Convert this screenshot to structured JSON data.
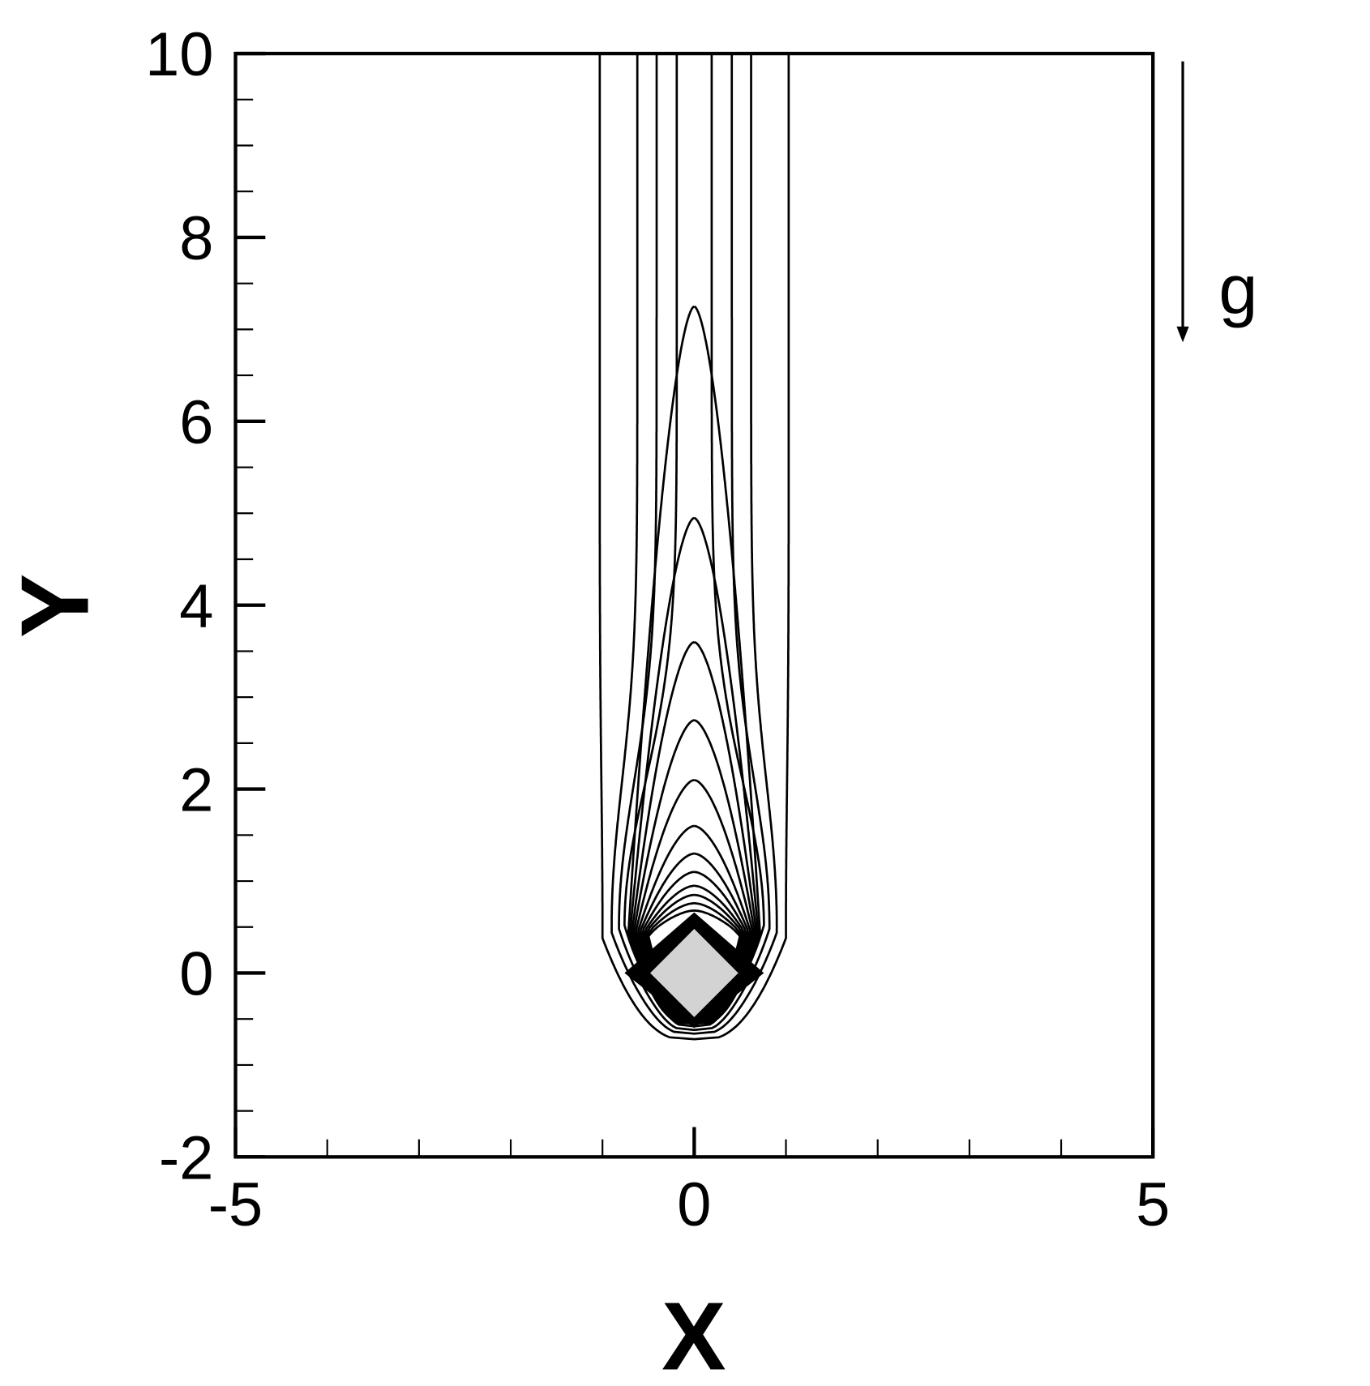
{
  "chart_data": {
    "type": "contour",
    "xlabel": "X",
    "ylabel": "Y",
    "xlim": [
      -5,
      5
    ],
    "ylim": [
      -2,
      10
    ],
    "x_ticks": [
      -5,
      0,
      5
    ],
    "x_minor_step": 1,
    "y_ticks": [
      -2,
      0,
      2,
      4,
      6,
      8,
      10
    ],
    "y_minor_step": 0.5,
    "grid": false,
    "legend": "none",
    "obstacle": {
      "shape": "diamond",
      "center": [
        0,
        0
      ],
      "half_diagonal": 0.48,
      "fill": "#d3d3d3",
      "edge": "#000000"
    },
    "gravity_label": "g",
    "open_contours": [
      {
        "half_width_top": 1.03,
        "half_width_max": 1.0,
        "y_bottom": -0.72
      },
      {
        "half_width_top": 0.62,
        "half_width_max": 0.9,
        "y_bottom": -0.66
      },
      {
        "half_width_top": 0.41,
        "half_width_max": 0.82,
        "y_bottom": -0.62
      },
      {
        "half_width_top": 0.19,
        "half_width_max": 0.76,
        "y_bottom": -0.58
      }
    ],
    "closed_contour_tips": [
      7.25,
      4.95,
      3.6,
      2.75,
      2.1,
      1.6,
      1.3,
      1.1,
      0.95,
      0.85,
      0.76,
      0.68
    ],
    "line_color": "#000000"
  }
}
